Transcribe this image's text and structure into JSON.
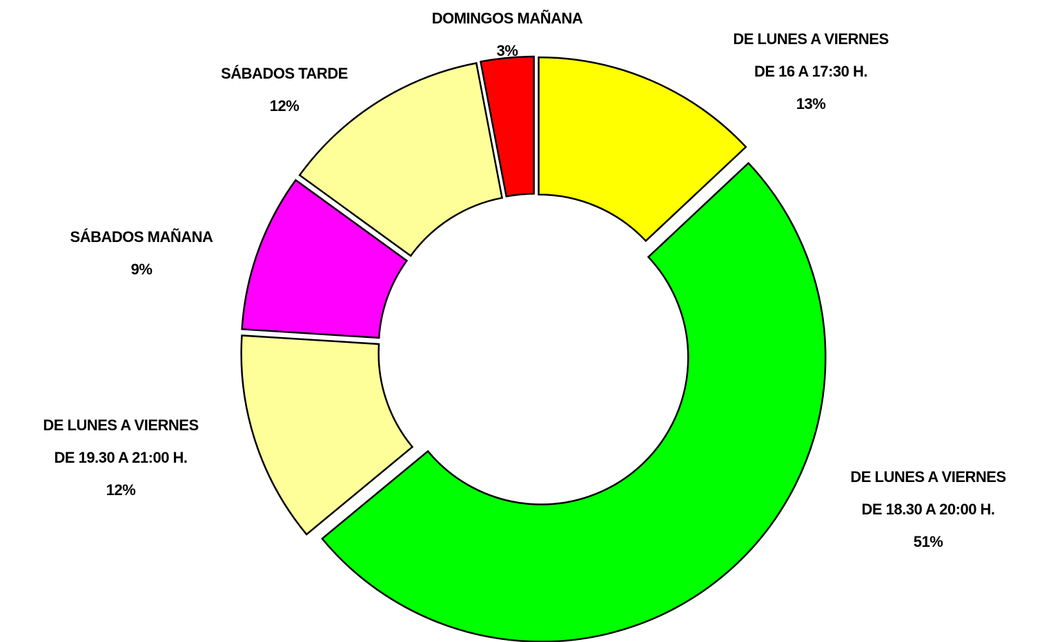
{
  "chart_data": {
    "type": "donut",
    "categories": [
      [
        "DE LUNES A VIERNES",
        "DE 16 A 17:30 H."
      ],
      [
        "DE LUNES A VIERNES",
        "DE 18.30 A 20:00 H."
      ],
      [
        "DE LUNES A VIERNES",
        "DE 19.30 A 21:00 H."
      ],
      [
        "SÁBADOS MAÑANA"
      ],
      [
        "SÁBADOS TARDE"
      ],
      [
        "DOMINGOS MAÑANA"
      ]
    ],
    "values": [
      13,
      51,
      12,
      9,
      12,
      3
    ],
    "value_labels": [
      "13%",
      "51%",
      "12%",
      "9%",
      "12%",
      "3%"
    ],
    "colors": [
      "#ffff00",
      "#00ff00",
      "#ffff99",
      "#ff00ff",
      "#ffff99",
      "#ff0000"
    ]
  }
}
